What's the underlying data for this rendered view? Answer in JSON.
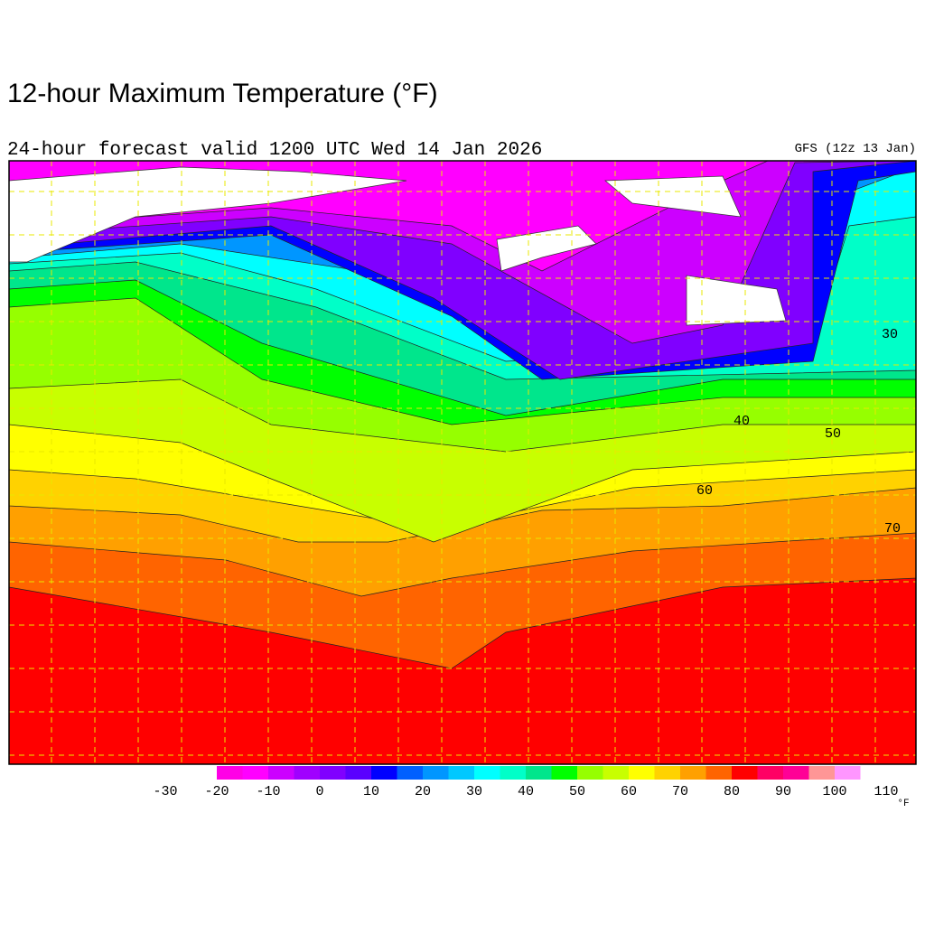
{
  "header": {
    "title": "12-hour Maximum Temperature (°F)",
    "subtitle": "24-hour forecast valid 1200 UTC Wed 14 Jan 2026",
    "model": "GFS (12z 13 Jan)"
  },
  "map": {
    "contour_labels": [
      30,
      40,
      50,
      60,
      70
    ]
  },
  "colorbar": {
    "levels": [
      -20,
      -15,
      -10,
      -5,
      0,
      5,
      10,
      15,
      20,
      25,
      30,
      35,
      40,
      45,
      50,
      55,
      60,
      65,
      70,
      75,
      80,
      85,
      90,
      95,
      100
    ],
    "colors": [
      "#ff00e6",
      "#ff00ff",
      "#cc00ff",
      "#a000ff",
      "#8000ff",
      "#5a00ff",
      "#0000ff",
      "#0060ff",
      "#0096ff",
      "#00c8ff",
      "#00ffff",
      "#00ffc8",
      "#00e68c",
      "#00ff00",
      "#96ff00",
      "#c8ff00",
      "#ffff00",
      "#ffd200",
      "#ffa000",
      "#ff6400",
      "#ff0000",
      "#ff0064",
      "#ff0096",
      "#ff9696",
      "#ff96ff"
    ],
    "ticks": [
      -30,
      -20,
      -10,
      0,
      10,
      20,
      30,
      40,
      50,
      60,
      70,
      80,
      90,
      100,
      110
    ],
    "unit": "°F"
  }
}
